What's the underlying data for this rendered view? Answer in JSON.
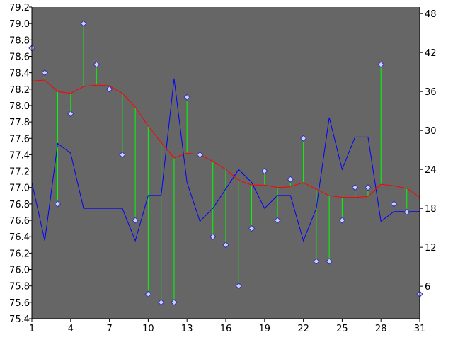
{
  "chart_data": {
    "type": "line",
    "title": "",
    "xlabel": "",
    "ylabel": "",
    "colors": {
      "plot_background": "#666666",
      "page_background": "#ffffff",
      "smooth_line": "#ff0000",
      "secondary_line": "#0000ff",
      "deviation_stem": "#00ff00",
      "marker_fill": "#ccccff",
      "marker_stroke": "#3333aa"
    },
    "x": [
      1,
      2,
      3,
      4,
      5,
      6,
      7,
      8,
      9,
      10,
      11,
      12,
      13,
      14,
      15,
      16,
      17,
      18,
      19,
      20,
      21,
      22,
      23,
      24,
      25,
      26,
      27,
      28,
      29,
      30,
      31
    ],
    "xlim": [
      1,
      31
    ],
    "x_ticks": [
      1,
      4,
      7,
      10,
      13,
      16,
      19,
      22,
      25,
      28,
      31
    ],
    "ylim": [
      75.4,
      79.2
    ],
    "y_ticks": [
      "75.4",
      "75.6",
      "75.8",
      "76.0",
      "76.2",
      "76.4",
      "76.6",
      "76.8",
      "77.0",
      "77.2",
      "77.4",
      "77.6",
      "77.8",
      "78.0",
      "78.2",
      "78.4",
      "78.6",
      "78.8",
      "79.0",
      "79.2"
    ],
    "y2lim": [
      1,
      49
    ],
    "y2_ticks": [
      6,
      12,
      18,
      24,
      30,
      36,
      42,
      48
    ],
    "series": [
      {
        "role": "points-with-stems",
        "axis": "left",
        "values": [
          78.7,
          78.4,
          76.8,
          77.9,
          79.0,
          78.5,
          78.2,
          77.4,
          76.6,
          75.7,
          75.6,
          75.6,
          78.1,
          77.4,
          76.4,
          76.3,
          75.8,
          76.5,
          77.2,
          76.6,
          77.1,
          77.6,
          76.1,
          76.1,
          76.6,
          77.0,
          77.0,
          78.5,
          76.8,
          76.7,
          75.7
        ]
      },
      {
        "role": "smooth-line",
        "axis": "left",
        "values": [
          78.3,
          78.31,
          78.17,
          78.15,
          78.23,
          78.25,
          78.24,
          78.15,
          77.98,
          77.75,
          77.55,
          77.36,
          77.42,
          77.4,
          77.32,
          77.22,
          77.09,
          77.03,
          77.03,
          77.0,
          77.01,
          77.06,
          76.98,
          76.9,
          76.88,
          76.88,
          76.89,
          77.04,
          77.02,
          76.99,
          76.88
        ]
      },
      {
        "role": "secondary-line",
        "axis": "right",
        "values": [
          22,
          13,
          28,
          26.5,
          18,
          18,
          18,
          18,
          13,
          20,
          20,
          38,
          22,
          16,
          18,
          21,
          24,
          22,
          18,
          20,
          20,
          13,
          18,
          32,
          24,
          29,
          29,
          16,
          17.5,
          17.5,
          17.5
        ]
      }
    ]
  }
}
